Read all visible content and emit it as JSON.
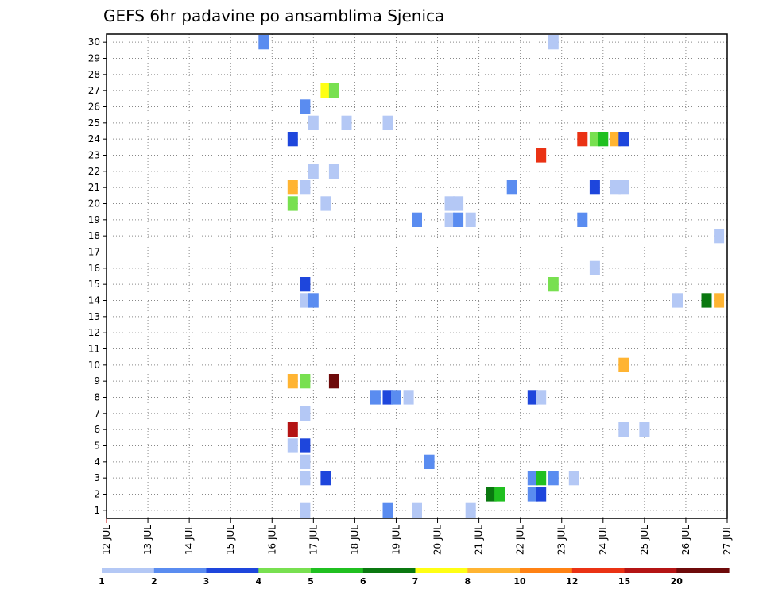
{
  "chart_data": {
    "type": "heatmap",
    "title": "GEFS 6hr padavine po ansamblima Sjenica",
    "xlabel": "",
    "ylabel": "",
    "x_tick_labels": [
      "12 JUL",
      "13 JUL",
      "14 JUL",
      "15 JUL",
      "16 JUL",
      "17 JUL",
      "18 JUL",
      "19 JUL",
      "20 JUL",
      "21 JUL",
      "22 JUL",
      "23 JUL",
      "24 JUL",
      "25 JUL",
      "26 JUL",
      "27 JUL"
    ],
    "x_range_days": [
      12,
      27
    ],
    "y_tick_labels": [
      "1",
      "2",
      "3",
      "4",
      "5",
      "6",
      "7",
      "8",
      "9",
      "10",
      "11",
      "12",
      "13",
      "14",
      "15",
      "16",
      "17",
      "18",
      "19",
      "20",
      "21",
      "22",
      "23",
      "24",
      "25",
      "26",
      "27",
      "28",
      "29",
      "30"
    ],
    "y_range": [
      0,
      30
    ],
    "grid": "dotted",
    "color_scale": {
      "thresholds": [
        "1",
        "2",
        "3",
        "4",
        "5",
        "6",
        "7",
        "8",
        "10",
        "12",
        "15",
        "20"
      ],
      "colors": [
        "#b4c8f5",
        "#5a8cf0",
        "#1e46dc",
        "#78e050",
        "#20c020",
        "#0a7810",
        "#ffff14",
        "#ffb432",
        "#ff8214",
        "#ea3214",
        "#b41414",
        "#6e0a0a"
      ]
    },
    "cells": [
      {
        "member": 30,
        "day": 15.8,
        "color": "#5a8cf0"
      },
      {
        "member": 30,
        "day": 22.8,
        "color": "#b4c8f5"
      },
      {
        "member": 27,
        "day": 17.3,
        "color": "#ffff14"
      },
      {
        "member": 27,
        "day": 17.5,
        "color": "#78e050"
      },
      {
        "member": 26,
        "day": 16.8,
        "color": "#5a8cf0"
      },
      {
        "member": 25,
        "day": 17.0,
        "color": "#b4c8f5"
      },
      {
        "member": 25,
        "day": 17.8,
        "color": "#b4c8f5"
      },
      {
        "member": 25,
        "day": 18.8,
        "color": "#b4c8f5"
      },
      {
        "member": 24,
        "day": 16.5,
        "color": "#1e46dc"
      },
      {
        "member": 24,
        "day": 23.5,
        "color": "#ea3214"
      },
      {
        "member": 24,
        "day": 23.8,
        "color": "#78e050"
      },
      {
        "member": 24,
        "day": 24.0,
        "color": "#20c020"
      },
      {
        "member": 24,
        "day": 24.3,
        "color": "#ffb432"
      },
      {
        "member": 24,
        "day": 24.5,
        "color": "#1e46dc"
      },
      {
        "member": 23,
        "day": 22.5,
        "color": "#ea3214"
      },
      {
        "member": 22,
        "day": 17.0,
        "color": "#b4c8f5"
      },
      {
        "member": 22,
        "day": 17.5,
        "color": "#b4c8f5"
      },
      {
        "member": 21,
        "day": 16.5,
        "color": "#ffb432"
      },
      {
        "member": 21,
        "day": 16.8,
        "color": "#b4c8f5"
      },
      {
        "member": 21,
        "day": 21.8,
        "color": "#5a8cf0"
      },
      {
        "member": 21,
        "day": 23.8,
        "color": "#1e46dc"
      },
      {
        "member": 21,
        "day": 24.3,
        "color": "#b4c8f5"
      },
      {
        "member": 21,
        "day": 24.5,
        "color": "#b4c8f5"
      },
      {
        "member": 20,
        "day": 16.5,
        "color": "#78e050"
      },
      {
        "member": 20,
        "day": 17.3,
        "color": "#b4c8f5"
      },
      {
        "member": 20,
        "day": 20.3,
        "color": "#b4c8f5"
      },
      {
        "member": 20,
        "day": 20.5,
        "color": "#b4c8f5"
      },
      {
        "member": 19,
        "day": 19.5,
        "color": "#5a8cf0"
      },
      {
        "member": 19,
        "day": 20.3,
        "color": "#b4c8f5"
      },
      {
        "member": 19,
        "day": 20.5,
        "color": "#5a8cf0"
      },
      {
        "member": 19,
        "day": 20.8,
        "color": "#b4c8f5"
      },
      {
        "member": 19,
        "day": 23.5,
        "color": "#5a8cf0"
      },
      {
        "member": 18,
        "day": 26.8,
        "color": "#b4c8f5"
      },
      {
        "member": 16,
        "day": 23.8,
        "color": "#b4c8f5"
      },
      {
        "member": 15,
        "day": 16.8,
        "color": "#1e46dc"
      },
      {
        "member": 15,
        "day": 22.8,
        "color": "#78e050"
      },
      {
        "member": 14,
        "day": 16.8,
        "color": "#b4c8f5"
      },
      {
        "member": 14,
        "day": 17.0,
        "color": "#5a8cf0"
      },
      {
        "member": 14,
        "day": 25.8,
        "color": "#b4c8f5"
      },
      {
        "member": 14,
        "day": 26.5,
        "color": "#0a7810"
      },
      {
        "member": 14,
        "day": 26.8,
        "color": "#ffb432"
      },
      {
        "member": 10,
        "day": 24.5,
        "color": "#ffb432"
      },
      {
        "member": 9,
        "day": 16.5,
        "color": "#ffb432"
      },
      {
        "member": 9,
        "day": 16.8,
        "color": "#78e050"
      },
      {
        "member": 9,
        "day": 17.5,
        "color": "#6e0a0a"
      },
      {
        "member": 8,
        "day": 18.5,
        "color": "#5a8cf0"
      },
      {
        "member": 8,
        "day": 18.8,
        "color": "#1e46dc"
      },
      {
        "member": 8,
        "day": 19.0,
        "color": "#5a8cf0"
      },
      {
        "member": 8,
        "day": 19.3,
        "color": "#b4c8f5"
      },
      {
        "member": 8,
        "day": 22.3,
        "color": "#1e46dc"
      },
      {
        "member": 8,
        "day": 22.5,
        "color": "#b4c8f5"
      },
      {
        "member": 7,
        "day": 16.8,
        "color": "#b4c8f5"
      },
      {
        "member": 6,
        "day": 16.5,
        "color": "#b41414"
      },
      {
        "member": 6,
        "day": 24.5,
        "color": "#b4c8f5"
      },
      {
        "member": 6,
        "day": 25.0,
        "color": "#b4c8f5"
      },
      {
        "member": 5,
        "day": 16.5,
        "color": "#b4c8f5"
      },
      {
        "member": 5,
        "day": 16.8,
        "color": "#1e46dc"
      },
      {
        "member": 4,
        "day": 16.8,
        "color": "#b4c8f5"
      },
      {
        "member": 4,
        "day": 19.8,
        "color": "#5a8cf0"
      },
      {
        "member": 3,
        "day": 16.8,
        "color": "#b4c8f5"
      },
      {
        "member": 3,
        "day": 17.3,
        "color": "#1e46dc"
      },
      {
        "member": 3,
        "day": 22.3,
        "color": "#5a8cf0"
      },
      {
        "member": 3,
        "day": 22.5,
        "color": "#20c020"
      },
      {
        "member": 3,
        "day": 22.8,
        "color": "#5a8cf0"
      },
      {
        "member": 3,
        "day": 23.3,
        "color": "#b4c8f5"
      },
      {
        "member": 2,
        "day": 21.3,
        "color": "#0a7810"
      },
      {
        "member": 2,
        "day": 21.5,
        "color": "#20c020"
      },
      {
        "member": 2,
        "day": 22.3,
        "color": "#5a8cf0"
      },
      {
        "member": 2,
        "day": 22.5,
        "color": "#1e46dc"
      },
      {
        "member": 1,
        "day": 16.8,
        "color": "#b4c8f5"
      },
      {
        "member": 1,
        "day": 18.8,
        "color": "#5a8cf0"
      },
      {
        "member": 1,
        "day": 19.5,
        "color": "#b4c8f5"
      },
      {
        "member": 1,
        "day": 20.8,
        "color": "#b4c8f5"
      }
    ]
  }
}
